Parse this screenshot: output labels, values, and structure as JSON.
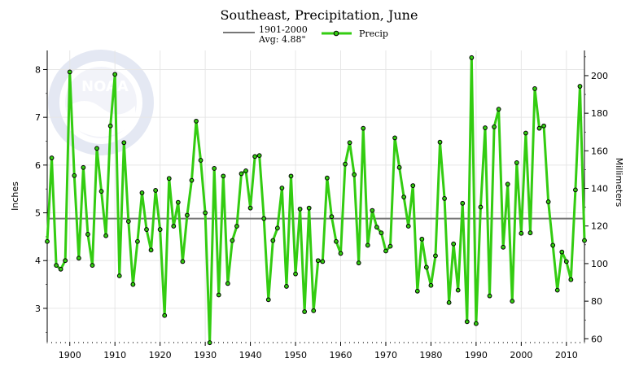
{
  "chart_data": {
    "type": "line",
    "title": "Southeast, Precipitation, June",
    "ylabel": "Inches",
    "y2label": "Millimeters",
    "xlabel": "",
    "xlim": [
      1895,
      2014
    ],
    "ylim": [
      2.3,
      8.4
    ],
    "y2lim": [
      58.4,
      213.4
    ],
    "x_ticks": [
      1900,
      1910,
      1920,
      1930,
      1940,
      1950,
      1960,
      1970,
      1980,
      1990,
      2000,
      2010
    ],
    "y_ticks": [
      3,
      4,
      5,
      6,
      7,
      8
    ],
    "y2_ticks": [
      60,
      80,
      100,
      120,
      140,
      160,
      180,
      200
    ],
    "grid": true,
    "legend_position": "top-center",
    "colors": {
      "series": "#33cc11",
      "marker_edge": "#000000",
      "average": "#777777",
      "grid": "#e6e6e6"
    },
    "average": {
      "label_line1": "1901-2000",
      "label_line2": "Avg: 4.88\"",
      "value": 4.88
    },
    "series": [
      {
        "name": "Precip",
        "x": [
          1895,
          1896,
          1897,
          1898,
          1899,
          1900,
          1901,
          1902,
          1903,
          1904,
          1905,
          1906,
          1907,
          1908,
          1909,
          1910,
          1911,
          1912,
          1913,
          1914,
          1915,
          1916,
          1917,
          1918,
          1919,
          1920,
          1921,
          1922,
          1923,
          1924,
          1925,
          1926,
          1927,
          1928,
          1929,
          1930,
          1931,
          1932,
          1933,
          1934,
          1935,
          1936,
          1937,
          1938,
          1939,
          1940,
          1941,
          1942,
          1943,
          1944,
          1945,
          1946,
          1947,
          1948,
          1949,
          1950,
          1951,
          1952,
          1953,
          1954,
          1955,
          1956,
          1957,
          1958,
          1959,
          1960,
          1961,
          1962,
          1963,
          1964,
          1965,
          1966,
          1967,
          1968,
          1969,
          1970,
          1971,
          1972,
          1973,
          1974,
          1975,
          1976,
          1977,
          1978,
          1979,
          1980,
          1981,
          1982,
          1983,
          1984,
          1985,
          1986,
          1987,
          1988,
          1989,
          1990,
          1991,
          1992,
          1993,
          1994,
          1995,
          1996,
          1997,
          1998,
          1999,
          2000,
          2001,
          2002,
          2003,
          2004,
          2005,
          2006,
          2007,
          2008,
          2009,
          2010,
          2011,
          2012,
          2013,
          2014
        ],
        "values": [
          4.4,
          6.15,
          3.9,
          3.82,
          4.0,
          7.95,
          5.78,
          4.05,
          5.95,
          4.55,
          3.9,
          6.35,
          5.45,
          4.52,
          6.82,
          7.9,
          3.68,
          6.47,
          4.82,
          3.5,
          4.4,
          5.42,
          4.65,
          4.22,
          5.47,
          4.65,
          2.85,
          5.72,
          4.72,
          5.22,
          3.98,
          4.95,
          5.68,
          6.92,
          6.1,
          5.0,
          2.28,
          5.93,
          3.28,
          5.77,
          3.52,
          4.42,
          4.72,
          5.82,
          5.88,
          5.1,
          6.18,
          6.2,
          4.88,
          3.18,
          4.42,
          4.68,
          5.52,
          3.46,
          5.77,
          3.72,
          5.08,
          2.93,
          5.1,
          2.95,
          4.0,
          3.98,
          5.73,
          4.92,
          4.4,
          4.15,
          6.02,
          6.47,
          5.8,
          3.95,
          6.77,
          4.32,
          5.05,
          4.7,
          4.58,
          4.2,
          4.3,
          6.57,
          5.95,
          5.33,
          4.72,
          5.57,
          3.36,
          4.45,
          3.86,
          3.48,
          4.1,
          6.48,
          5.3,
          3.12,
          4.35,
          3.38,
          5.2,
          2.72,
          8.25,
          2.68,
          5.12,
          6.78,
          3.26,
          6.8,
          7.17,
          4.28,
          5.6,
          3.15,
          6.05,
          4.57,
          6.67,
          4.58,
          7.6,
          6.77,
          6.82,
          5.23,
          4.32,
          3.38,
          4.18,
          3.98,
          3.6,
          5.48,
          7.65,
          4.42
        ]
      }
    ]
  }
}
